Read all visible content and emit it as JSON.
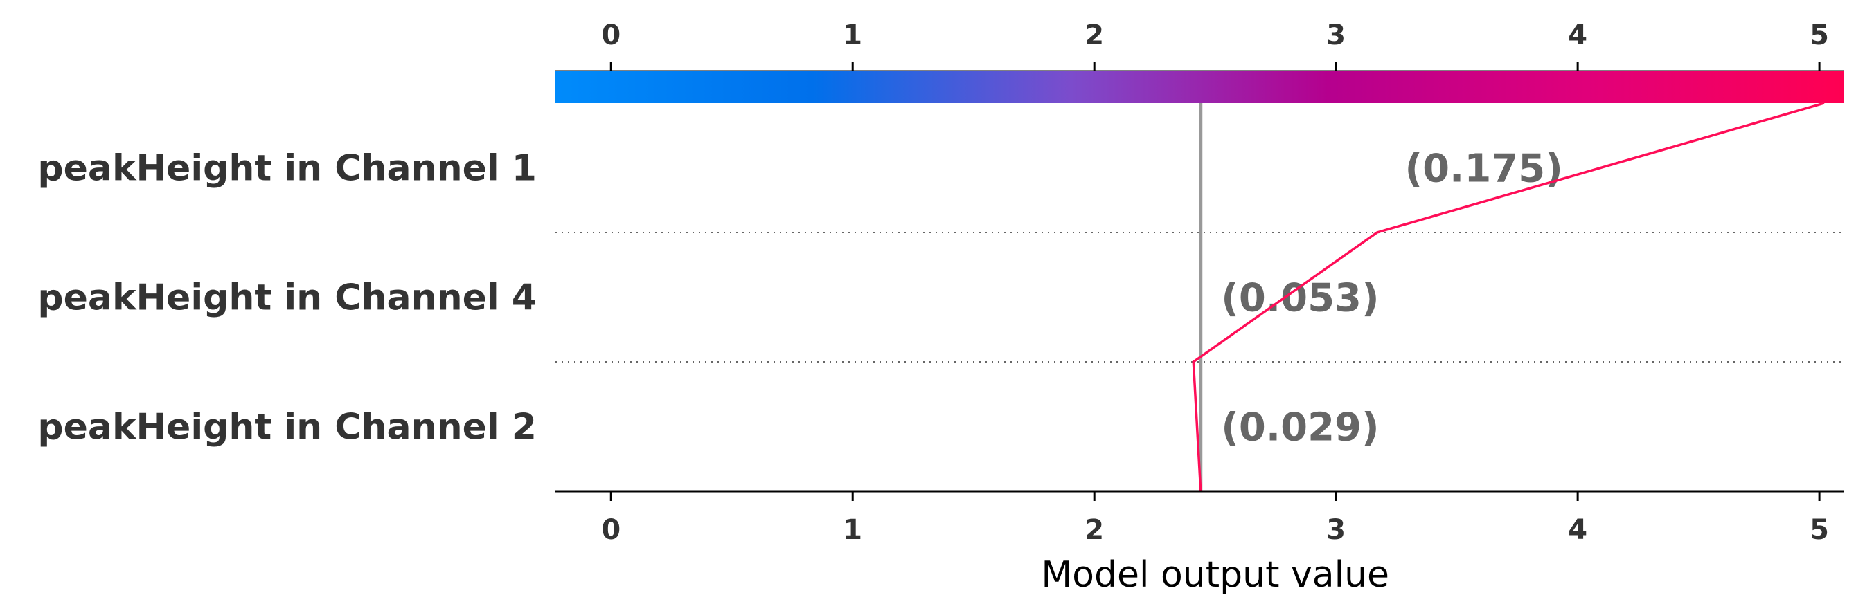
{
  "chart_data": {
    "type": "line",
    "xlabel": "Model output value",
    "xlim": [
      -0.23,
      5.1
    ],
    "ticks": [
      0,
      1,
      2,
      3,
      4,
      5
    ],
    "tick_labels": [
      "0",
      "1",
      "2",
      "3",
      "4",
      "5"
    ],
    "base_value": 2.44,
    "colorbar_colors": [
      "#008bfb",
      "#0070eb",
      "#7c4ccc",
      "#b5008e",
      "#e0007a",
      "#ff0052"
    ],
    "line_color": "#ff0d57",
    "features": [
      {
        "name": "peakHeight in Channel 1",
        "value_label": "(0.175)"
      },
      {
        "name": "peakHeight in Channel 4",
        "value_label": "(0.053)"
      },
      {
        "name": "peakHeight in Channel 2",
        "value_label": "(0.029)"
      }
    ],
    "path_x": [
      5.02,
      3.17,
      2.41,
      2.44
    ]
  }
}
